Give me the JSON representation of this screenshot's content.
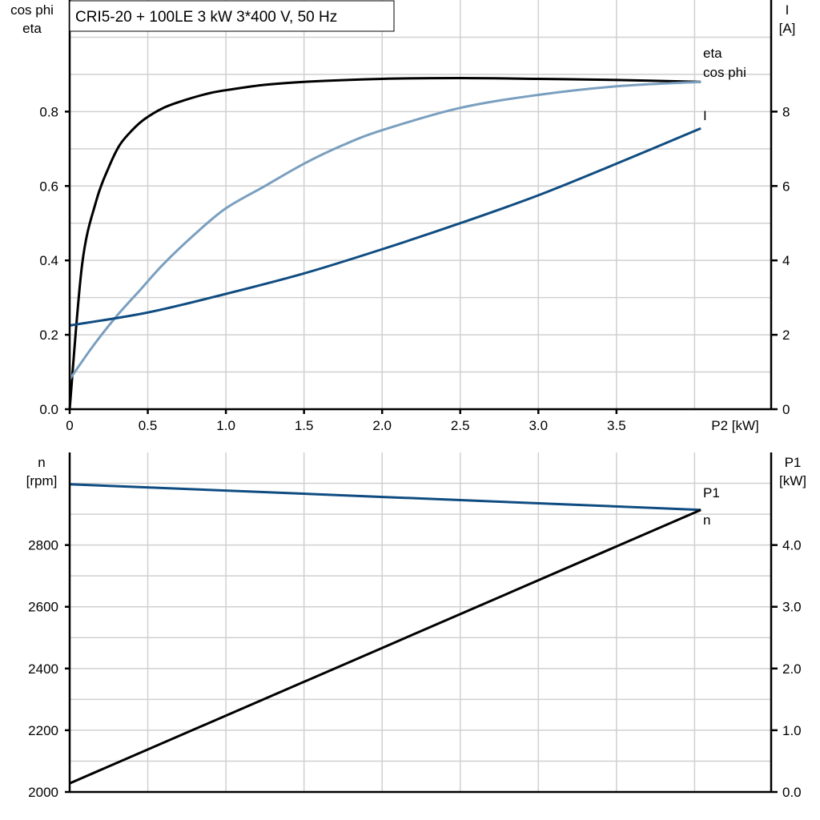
{
  "title": "CRI5-20 + 100LE   3 kW   3*400 V, 50 Hz",
  "colors": {
    "eta": "#000000",
    "cos_phi": "#7a9fbf",
    "I": "#0f4c81",
    "n": "#0f4c81",
    "P1": "#000000"
  },
  "chart_data": [
    {
      "type": "line",
      "xlabel": "P2 [kW]",
      "ylabel_left": [
        "cos phi",
        "eta"
      ],
      "ylabel_right": [
        "I",
        "[A]"
      ],
      "xlim": [
        0,
        4.49
      ],
      "ylim_left": [
        0,
        1.1
      ],
      "ylim_right": [
        0,
        11
      ],
      "grid": true,
      "x_ticks": [
        "0",
        "0.5",
        "1.0",
        "1.5",
        "2.0",
        "2.5",
        "3.0",
        "3.5"
      ],
      "y_ticks_left": [
        "0.0",
        "0.2",
        "0.4",
        "0.6",
        "0.8"
      ],
      "y_ticks_right": [
        "0",
        "2",
        "4",
        "6",
        "8"
      ],
      "series": [
        {
          "name": "eta",
          "axis": "left",
          "x": [
            0,
            0.08,
            0.17,
            0.25,
            0.32,
            0.4,
            0.48,
            0.6,
            0.73,
            0.9,
            1.04,
            1.25,
            1.5,
            2.0,
            2.5,
            3.0,
            3.5,
            4.04
          ],
          "y": [
            0,
            0.39,
            0.56,
            0.65,
            0.71,
            0.75,
            0.78,
            0.81,
            0.83,
            0.85,
            0.86,
            0.872,
            0.88,
            0.888,
            0.89,
            0.888,
            0.885,
            0.88
          ]
        },
        {
          "name": "cos phi",
          "axis": "left",
          "x": [
            0,
            0.15,
            0.3,
            0.45,
            0.6,
            0.8,
            1.0,
            1.25,
            1.5,
            1.75,
            2.0,
            2.5,
            3.0,
            3.5,
            4.04
          ],
          "y": [
            0.08,
            0.17,
            0.25,
            0.32,
            0.39,
            0.47,
            0.54,
            0.6,
            0.66,
            0.71,
            0.75,
            0.81,
            0.845,
            0.868,
            0.88
          ]
        },
        {
          "name": "I",
          "axis": "right",
          "x": [
            0,
            0.5,
            1.0,
            1.5,
            2.0,
            2.5,
            3.0,
            3.5,
            4.04
          ],
          "y": [
            2.25,
            2.6,
            3.1,
            3.65,
            4.3,
            5.0,
            5.75,
            6.6,
            7.55
          ]
        }
      ]
    },
    {
      "type": "line",
      "ylabel_left": [
        "n",
        "[rpm]"
      ],
      "ylabel_right": [
        "P1",
        "[kW]"
      ],
      "xlim": [
        0,
        4.49
      ],
      "ylim_left": [
        2000,
        3100
      ],
      "ylim_right": [
        0,
        5.5
      ],
      "grid": true,
      "y_ticks_left": [
        "2000",
        "2200",
        "2400",
        "2600",
        "2800"
      ],
      "y_ticks_right": [
        "0.0",
        "1.0",
        "2.0",
        "3.0",
        "4.0"
      ],
      "series": [
        {
          "name": "n",
          "axis": "left",
          "x": [
            0,
            4.04
          ],
          "y": [
            2997,
            2914
          ]
        },
        {
          "name": "P1",
          "axis": "right",
          "x": [
            0,
            4.04
          ],
          "y": [
            0.14,
            4.57
          ]
        }
      ]
    }
  ]
}
